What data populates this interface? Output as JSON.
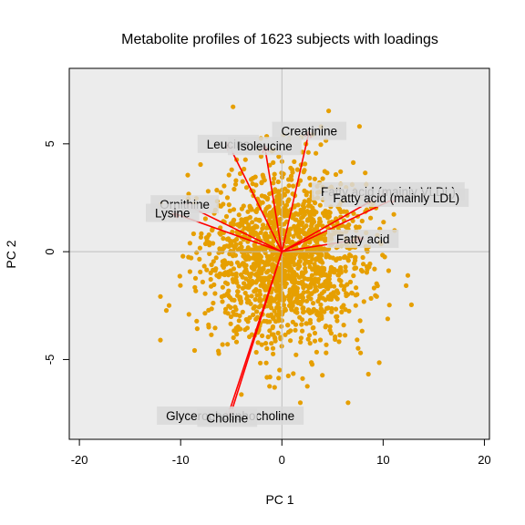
{
  "chart_data": {
    "type": "scatter",
    "title": "Metabolite profiles of 1623 subjects with loadings",
    "xlabel": "PC 1",
    "ylabel": "PC 2",
    "xlim": [
      -21,
      20.5
    ],
    "ylim": [
      -8.7,
      8.5
    ],
    "xticks": [
      -20,
      -10,
      0,
      10,
      20
    ],
    "yticks": [
      -5,
      0,
      5
    ],
    "grid": "reference lines at x=0 and y=0",
    "points": {
      "n": 1623,
      "color": "#E69F00",
      "center": [
        0,
        -0.3
      ],
      "spread": "roughly x in [-12, 19], y in [-7, 8]"
    },
    "loadings": [
      {
        "name": "Creatinine",
        "x": 2.7,
        "y": 5.6
      },
      {
        "name": "Leucine",
        "x": -5.3,
        "y": 5.0
      },
      {
        "name": "Isoleucine",
        "x": -1.7,
        "y": 4.9
      },
      {
        "name": "Fatty acid (mainly VLDL)",
        "x": 10.5,
        "y": 2.8
      },
      {
        "name": "Fatty acid (mainly LDL)",
        "x": 11.3,
        "y": 2.5
      },
      {
        "name": "Ornithine",
        "x": -9.6,
        "y": 2.2
      },
      {
        "name": "Lysine",
        "x": -10.8,
        "y": 1.8
      },
      {
        "name": "Fatty acid",
        "x": 8.0,
        "y": 0.6
      },
      {
        "name": "Glycerophosphocholine",
        "x": -5.1,
        "y": -7.6
      },
      {
        "name": "Choline",
        "x": -5.4,
        "y": -7.7
      }
    ],
    "colors": {
      "points": "#E69F00",
      "arrows": "#FF0000",
      "panel": "#ECECEC",
      "label_box": "#D9D9D9",
      "refline": "#BEBEBE"
    }
  }
}
